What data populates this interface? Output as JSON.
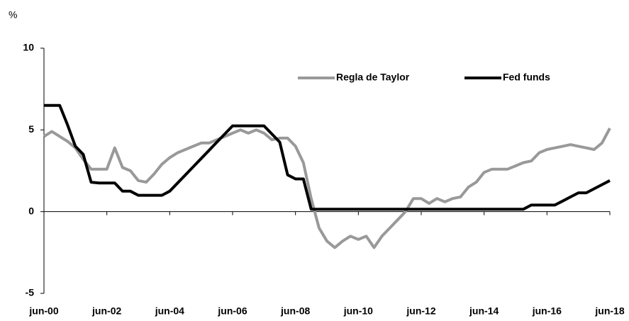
{
  "chart_data": {
    "type": "line",
    "ylabel": "%",
    "x": [
      "jun-00",
      "sep-00",
      "dic-00",
      "mar-01",
      "jun-01",
      "sep-01",
      "dic-01",
      "mar-02",
      "jun-02",
      "sep-02",
      "dic-02",
      "mar-03",
      "jun-03",
      "sep-03",
      "dic-03",
      "mar-04",
      "jun-04",
      "sep-04",
      "dic-04",
      "mar-05",
      "jun-05",
      "sep-05",
      "dic-05",
      "mar-06",
      "jun-06",
      "sep-06",
      "dic-06",
      "mar-07",
      "jun-07",
      "sep-07",
      "dic-07",
      "mar-08",
      "jun-08",
      "sep-08",
      "dic-08",
      "mar-09",
      "jun-09",
      "sep-09",
      "dic-09",
      "mar-10",
      "jun-10",
      "sep-10",
      "dic-10",
      "mar-11",
      "jun-11",
      "sep-11",
      "dic-11",
      "mar-12",
      "jun-12",
      "sep-12",
      "dic-12",
      "mar-13",
      "jun-13",
      "sep-13",
      "dic-13",
      "mar-14",
      "jun-14",
      "sep-14",
      "dic-14",
      "mar-15",
      "jun-15",
      "sep-15",
      "dic-15",
      "mar-16",
      "jun-16",
      "sep-16",
      "dic-16",
      "mar-17",
      "jun-17",
      "sep-17",
      "dic-17",
      "mar-18",
      "jun-18"
    ],
    "xticks": [
      "jun-00",
      "jun-02",
      "jun-04",
      "jun-06",
      "jun-08",
      "jun-10",
      "jun-12",
      "jun-14",
      "jun-16",
      "jun-18"
    ],
    "series": [
      {
        "name": "Regla de Taylor",
        "color": "#999999",
        "values": [
          4.6,
          4.9,
          4.6,
          4.3,
          3.9,
          3.2,
          2.6,
          2.6,
          2.6,
          3.9,
          2.7,
          2.5,
          1.9,
          1.8,
          2.3,
          2.9,
          3.3,
          3.6,
          3.8,
          4.0,
          4.2,
          4.2,
          4.4,
          4.6,
          4.8,
          5.0,
          4.8,
          5.0,
          4.8,
          4.4,
          4.5,
          4.5,
          4.0,
          3.0,
          0.8,
          -1.0,
          -1.8,
          -2.2,
          -1.8,
          -1.5,
          -1.7,
          -1.5,
          -2.2,
          -1.5,
          -1.0,
          -0.5,
          0.0,
          0.8,
          0.8,
          0.5,
          0.8,
          0.6,
          0.8,
          0.9,
          1.5,
          1.8,
          2.4,
          2.6,
          2.6,
          2.6,
          2.8,
          3.0,
          3.1,
          3.6,
          3.8,
          3.9,
          4.0,
          4.1,
          4.0,
          3.9,
          3.8,
          4.2,
          5.1
        ]
      },
      {
        "name": "Fed funds",
        "color": "#000000",
        "values": [
          6.5,
          6.5,
          6.5,
          5.3,
          4.0,
          3.5,
          1.8,
          1.75,
          1.75,
          1.75,
          1.25,
          1.25,
          1.0,
          1.0,
          1.0,
          1.0,
          1.25,
          1.75,
          2.25,
          2.75,
          3.25,
          3.75,
          4.25,
          4.75,
          5.25,
          5.25,
          5.25,
          5.25,
          5.25,
          4.75,
          4.25,
          2.25,
          2.0,
          2.0,
          0.15,
          0.15,
          0.15,
          0.15,
          0.15,
          0.15,
          0.15,
          0.15,
          0.15,
          0.15,
          0.15,
          0.15,
          0.15,
          0.15,
          0.15,
          0.15,
          0.15,
          0.15,
          0.15,
          0.15,
          0.15,
          0.15,
          0.15,
          0.15,
          0.15,
          0.15,
          0.15,
          0.15,
          0.4,
          0.4,
          0.4,
          0.4,
          0.65,
          0.9,
          1.15,
          1.15,
          1.4,
          1.65,
          1.9
        ]
      }
    ],
    "ylim": [
      -5,
      10
    ],
    "yticks": [
      -5,
      0,
      5,
      10
    ],
    "legend": "top"
  }
}
